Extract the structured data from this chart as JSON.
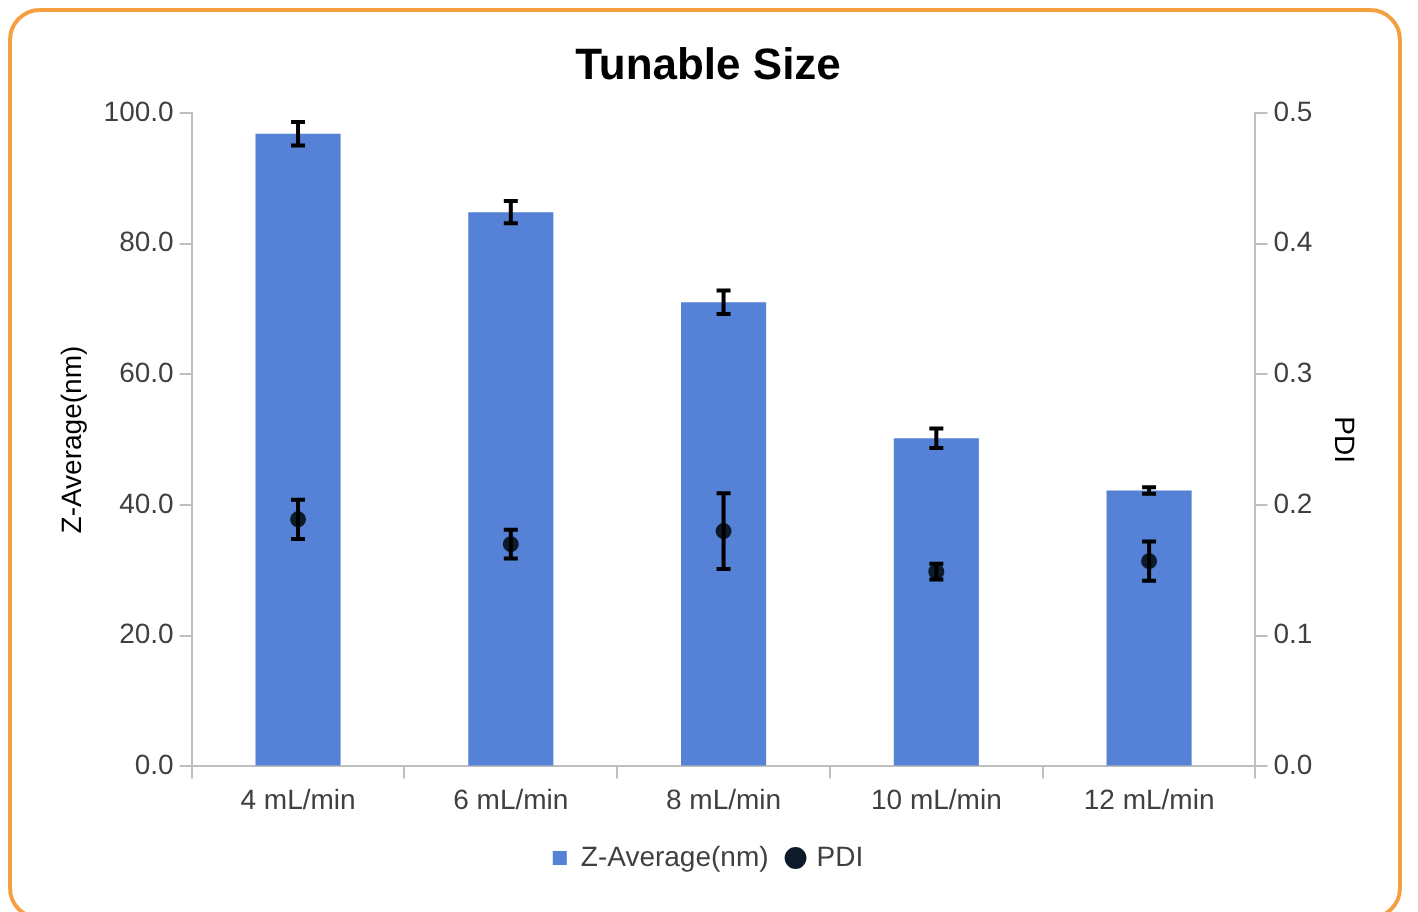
{
  "chart_data": {
    "type": "bar",
    "title": "Tunable Size",
    "ylabel": "Z-Average(nm)",
    "y2label": "PDI",
    "categories": [
      "4 mL/min",
      "6 mL/min",
      "8 mL/min",
      "10 mL/min",
      "12 mL/min"
    ],
    "series": [
      {
        "name": "Z-Average(nm)",
        "color": "#5582d6",
        "values": [
          96.8,
          84.8,
          71.0,
          50.2,
          42.2
        ],
        "errors": [
          1.8,
          1.7,
          1.8,
          1.5,
          0.5
        ]
      },
      {
        "name": "PDI",
        "type": "scatter",
        "axis": "y2",
        "color": "#0d1b2a",
        "x": [
          "4 mL/min",
          "6 mL/min",
          "8 mL/min",
          "10 mL/min",
          "12 mL/min"
        ],
        "values": [
          0.189,
          0.17,
          0.18,
          0.149,
          0.157
        ],
        "errors": [
          0.015,
          0.011,
          0.029,
          0.006,
          0.015
        ]
      }
    ],
    "ylim": [
      0,
      100
    ],
    "yticks": [
      {
        "value": 0,
        "label": "0.0"
      },
      {
        "value": 20,
        "label": "20.0"
      },
      {
        "value": 40,
        "label": "40.0"
      },
      {
        "value": 60,
        "label": "60.0"
      },
      {
        "value": 80,
        "label": "80.0"
      },
      {
        "value": 100,
        "label": "100.0"
      }
    ],
    "y2lim": [
      0,
      0.5
    ],
    "y2ticks": [
      {
        "value": 0,
        "label": "0.0"
      },
      {
        "value": 0.1,
        "label": "0.1"
      },
      {
        "value": 0.2,
        "label": "0.2"
      },
      {
        "value": 0.3,
        "label": "0.3"
      },
      {
        "value": 0.4,
        "label": "0.4"
      },
      {
        "value": 0.5,
        "label": "0.5"
      }
    ],
    "legend": "bottom",
    "marker": "circle"
  }
}
